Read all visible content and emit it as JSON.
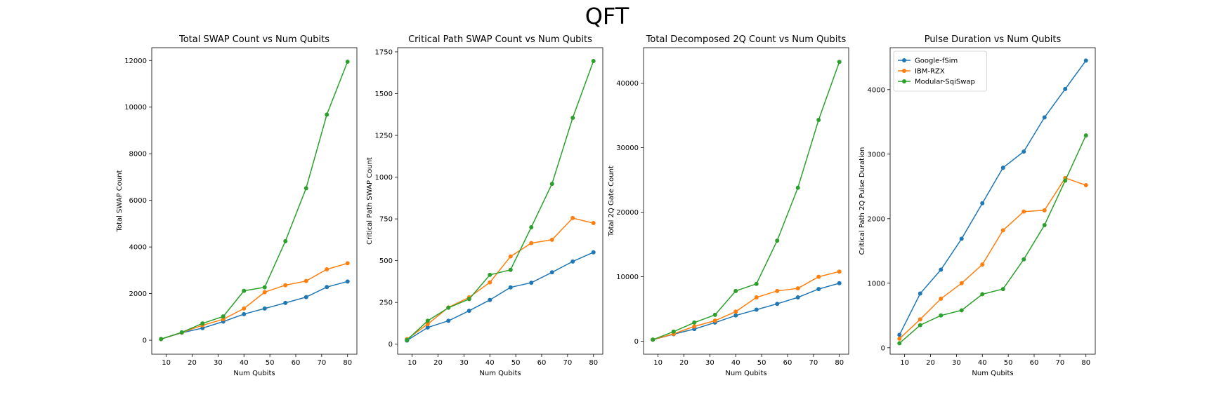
{
  "figure": {
    "suptitle": "QFT"
  },
  "colors": {
    "Google-fSim": "#1f77b4",
    "IBM-RZX": "#ff7f0e",
    "Modular-SqiSwap": "#2ca02c"
  },
  "chart_data": [
    {
      "type": "line",
      "title": "Total SWAP Count vs Num Qubits",
      "xlabel": "Num Qubits",
      "ylabel": "Total SWAP Count",
      "x": [
        8,
        16,
        24,
        32,
        40,
        48,
        56,
        64,
        72,
        80
      ],
      "xlim": [
        4.4,
        83.6
      ],
      "ylim": [
        -600,
        12550
      ],
      "xticks": [
        10,
        20,
        30,
        40,
        50,
        60,
        70,
        80
      ],
      "yticks": [
        0,
        2000,
        4000,
        6000,
        8000,
        10000,
        12000
      ],
      "grid": false,
      "legend": null,
      "series": [
        {
          "name": "Google-fSim",
          "color": "#1f77b4",
          "values": [
            50,
            320,
            520,
            800,
            1120,
            1360,
            1600,
            1850,
            2280,
            2520
          ]
        },
        {
          "name": "IBM-RZX",
          "color": "#ff7f0e",
          "values": [
            50,
            330,
            640,
            900,
            1360,
            2060,
            2360,
            2540,
            3040,
            3300
          ]
        },
        {
          "name": "Modular-SqiSwap",
          "color": "#2ca02c",
          "values": [
            50,
            340,
            720,
            1020,
            2120,
            2270,
            4250,
            6520,
            9680,
            11950
          ]
        }
      ]
    },
    {
      "type": "line",
      "title": "Critical Path SWAP Count vs Num Qubits",
      "xlabel": "Num Qubits",
      "ylabel": "Critical Path SWAP Count",
      "x": [
        8,
        16,
        24,
        32,
        40,
        48,
        56,
        64,
        72,
        80
      ],
      "xlim": [
        4.4,
        83.6
      ],
      "ylim": [
        -60,
        1775
      ],
      "xticks": [
        10,
        20,
        30,
        40,
        50,
        60,
        70,
        80
      ],
      "yticks": [
        0,
        250,
        500,
        750,
        1000,
        1250,
        1500,
        1750
      ],
      "grid": false,
      "legend": null,
      "series": [
        {
          "name": "Google-fSim",
          "color": "#1f77b4",
          "values": [
            22,
            100,
            140,
            200,
            265,
            340,
            368,
            430,
            495,
            550
          ]
        },
        {
          "name": "IBM-RZX",
          "color": "#ff7f0e",
          "values": [
            30,
            120,
            220,
            280,
            370,
            525,
            605,
            625,
            755,
            725
          ]
        },
        {
          "name": "Modular-SqiSwap",
          "color": "#2ca02c",
          "values": [
            25,
            140,
            218,
            270,
            415,
            445,
            700,
            960,
            1355,
            1695
          ]
        }
      ]
    },
    {
      "type": "line",
      "title": "Total Decomposed 2Q Count vs Num Qubits",
      "xlabel": "Num Qubits",
      "ylabel": "Total 2Q Gate Count",
      "x": [
        8,
        16,
        24,
        32,
        40,
        48,
        56,
        64,
        72,
        80
      ],
      "xlim": [
        4.4,
        83.6
      ],
      "ylim": [
        -2000,
        45500
      ],
      "xticks": [
        10,
        20,
        30,
        40,
        50,
        60,
        70,
        80
      ],
      "yticks": [
        0,
        10000,
        20000,
        30000,
        40000
      ],
      "grid": false,
      "legend": null,
      "series": [
        {
          "name": "Google-fSim",
          "color": "#1f77b4",
          "values": [
            250,
            1100,
            1900,
            2900,
            4000,
            4900,
            5800,
            6800,
            8100,
            9000
          ]
        },
        {
          "name": "IBM-RZX",
          "color": "#ff7f0e",
          "values": [
            250,
            1150,
            2300,
            3200,
            4600,
            6800,
            7800,
            8200,
            10000,
            10800
          ]
        },
        {
          "name": "Modular-SqiSwap",
          "color": "#2ca02c",
          "values": [
            250,
            1500,
            2900,
            4100,
            7800,
            8900,
            15600,
            23800,
            34300,
            43300
          ]
        }
      ]
    },
    {
      "type": "line",
      "title": "Pulse Duration vs Num Qubits",
      "xlabel": "Num Qubits",
      "ylabel": "Critical Path 2Q Pulse Duration",
      "x": [
        8,
        16,
        24,
        32,
        40,
        48,
        56,
        64,
        72,
        80
      ],
      "xlim": [
        4.4,
        83.6
      ],
      "ylim": [
        -100,
        4650
      ],
      "xticks": [
        10,
        20,
        30,
        40,
        50,
        60,
        70,
        80
      ],
      "yticks": [
        0,
        1000,
        2000,
        3000,
        4000
      ],
      "grid": false,
      "legend": "upper left",
      "series": [
        {
          "name": "Google-fSim",
          "color": "#1f77b4",
          "values": [
            200,
            840,
            1210,
            1690,
            2240,
            2790,
            3040,
            3570,
            4010,
            4450
          ]
        },
        {
          "name": "IBM-RZX",
          "color": "#ff7f0e",
          "values": [
            140,
            440,
            760,
            1000,
            1290,
            1820,
            2110,
            2130,
            2630,
            2520
          ]
        },
        {
          "name": "Modular-SqiSwap",
          "color": "#2ca02c",
          "values": [
            70,
            350,
            500,
            580,
            830,
            910,
            1370,
            1900,
            2590,
            3290
          ]
        }
      ]
    }
  ]
}
